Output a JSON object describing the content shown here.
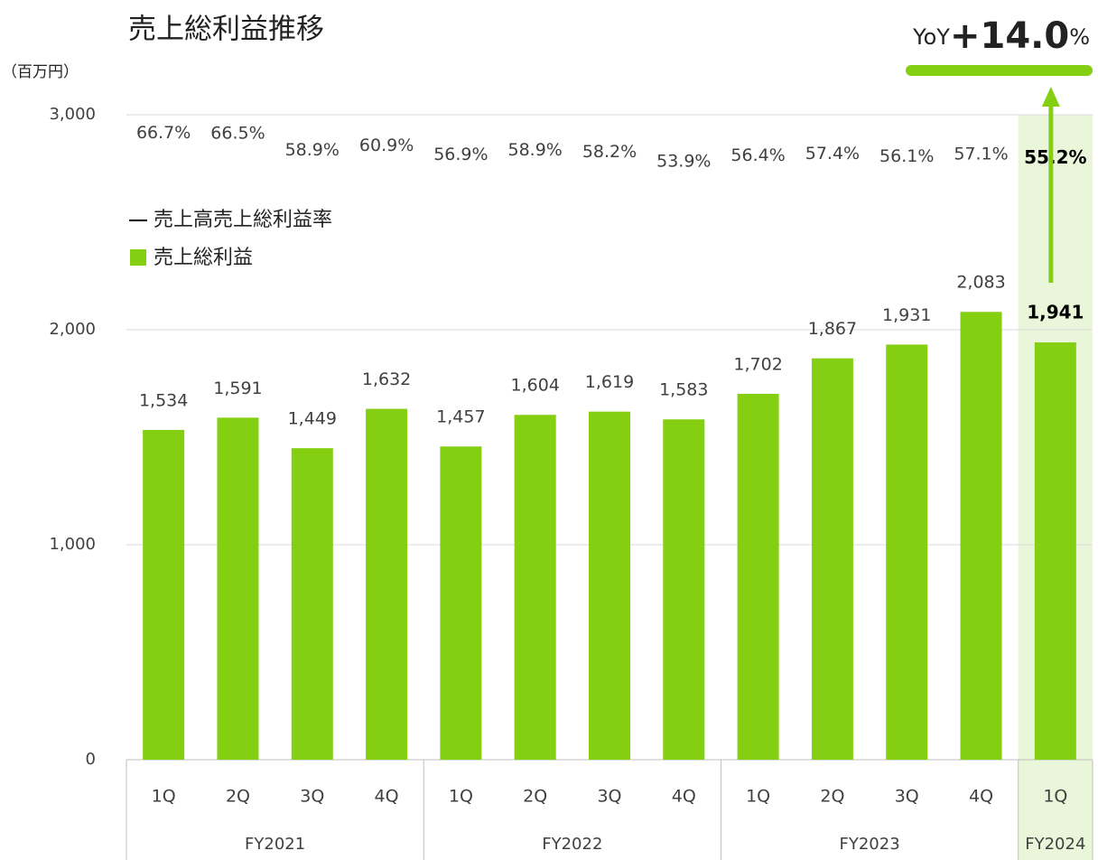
{
  "chart_data": {
    "type": "bar",
    "title": "売上総利益推移",
    "y_axis_label": "（百万円）",
    "categories": [
      "1Q",
      "2Q",
      "3Q",
      "4Q",
      "1Q",
      "2Q",
      "3Q",
      "4Q",
      "1Q",
      "2Q",
      "3Q",
      "4Q",
      "1Q"
    ],
    "x_groups": [
      "FY2021",
      "FY2021",
      "FY2021",
      "FY2021",
      "FY2022",
      "FY2022",
      "FY2022",
      "FY2022",
      "FY2023",
      "FY2023",
      "FY2023",
      "FY2023",
      "FY2024"
    ],
    "series": [
      {
        "name": "売上総利益",
        "type": "bar",
        "color": "#84cf12",
        "values": [
          1534,
          1591,
          1449,
          1632,
          1457,
          1604,
          1619,
          1583,
          1702,
          1867,
          1931,
          2083,
          1941
        ],
        "value_labels": [
          "1,534",
          "1,591",
          "1,449",
          "1,632",
          "1,457",
          "1,604",
          "1,619",
          "1,583",
          "1,702",
          "1,867",
          "1,931",
          "2,083",
          "1,941"
        ]
      },
      {
        "name": "売上高売上総利益率",
        "type": "line",
        "axis": "y2",
        "color": "#000000",
        "values": [
          66.7,
          66.5,
          58.9,
          60.9,
          56.9,
          58.9,
          58.2,
          53.9,
          56.4,
          57.4,
          56.1,
          57.1,
          55.2
        ],
        "value_labels": [
          "66.7%",
          "66.5%",
          "58.9%",
          "60.9%",
          "56.9%",
          "58.9%",
          "58.2%",
          "53.9%",
          "56.4%",
          "57.4%",
          "56.1%",
          "57.1%",
          "55.2%"
        ]
      }
    ],
    "ylim": [
      0,
      3000
    ],
    "yticks": [
      0,
      {
        "value": 1000,
        "label": "1,000"
      },
      {
        "value": 2000,
        "label": "2,000"
      },
      {
        "value": 3000,
        "label": "3,000"
      }
    ],
    "y2lim": [
      -200,
      90
    ],
    "grid": true,
    "highlight_color": "#eaf6da",
    "annotation": {
      "prefix": "YoY",
      "text": "+14.0",
      "unit": "%",
      "color": "#84cf12"
    }
  }
}
